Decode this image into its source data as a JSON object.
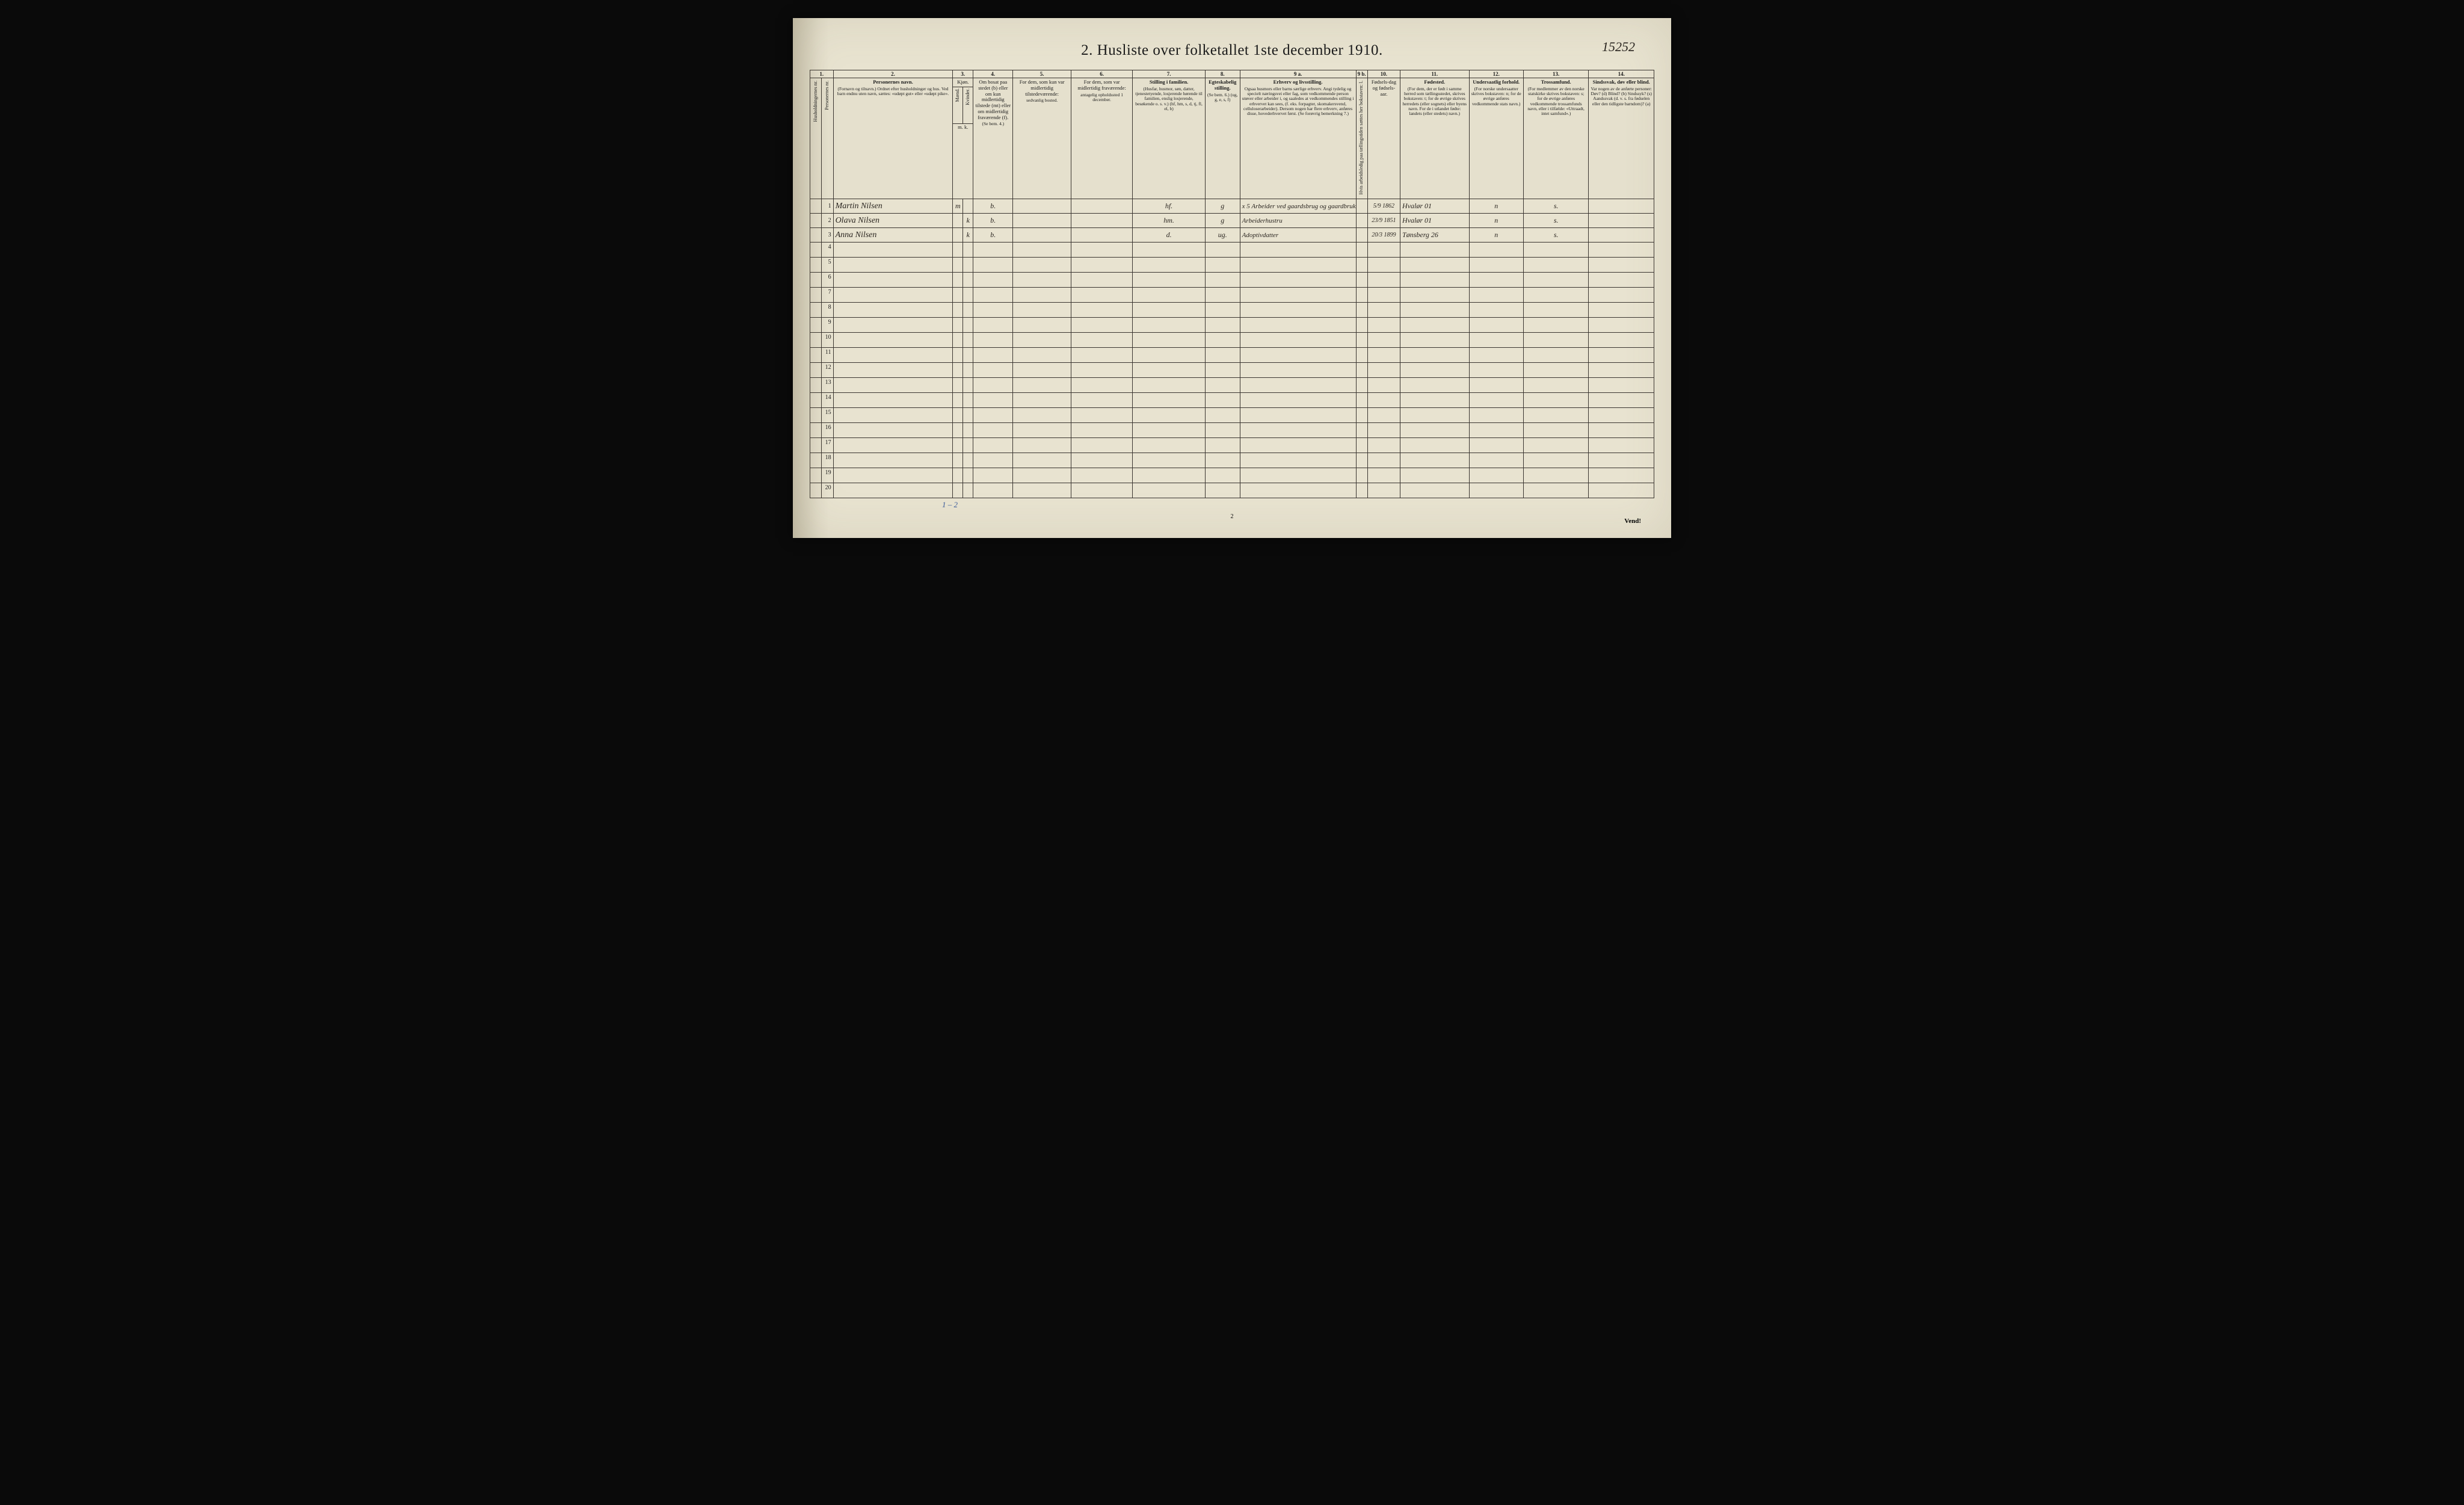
{
  "corner_annotation": "15252",
  "title": "2.  Husliste over folketallet 1ste december 1910.",
  "column_numbers": [
    "1.",
    "2.",
    "3.",
    "4.",
    "5.",
    "6.",
    "7.",
    "8.",
    "9 a.",
    "9 b.",
    "10.",
    "11.",
    "12.",
    "13.",
    "14."
  ],
  "headers": {
    "c1a": "Husholdningernes nr.",
    "c1b": "Personernes nr.",
    "c2_main": "Personernes navn.",
    "c2_sub": "(Fornavn og tilnavn.)\nOrdnet efter husholdninger og hus.\nVed barn endnu uten navn, sættes: «udøpt gut» eller «udøpt pike».",
    "c3_main": "Kjøn.",
    "c3_m": "Mænd.",
    "c3_k": "Kvinder.",
    "c3_foot": "m.  k.",
    "c4_main": "Om bosat paa stedet (b) eller om kun midlertidig tilstede (mt) eller om midlertidig fraværende (f).",
    "c4_foot": "(Se bem. 4.)",
    "c5_main": "For dem, som kun var midlertidig tilstedeværende:",
    "c5_sub": "sedvanlig bosted.",
    "c6_main": "For dem, som var midlertidig fraværende:",
    "c6_sub": "antagelig opholdssted 1 december.",
    "c7_main": "Stilling i familien.",
    "c7_sub": "(Husfar, husmor, søn, datter, tjenestetyende, losjerende hørende til familien, enslig losjerende, besøkende o. s. v.)\n(hf, hm, s, d, tj, fl, el, b)",
    "c8_main": "Egteskabelig stilling.",
    "c8_sub": "(Se bem. 6.)\n(ug, g, e, s, f)",
    "c9a_main": "Erhverv og livsstilling.",
    "c9a_sub": "Ogsaa husmors eller barns særlige erhverv.\nAngi tydelig og specielt næringsvei eller fag, som vedkommende person utøver eller arbeider i, og saaledes at vedkommendes stilling i erhvervet kan sees, (f. eks. forpagter, skomakersvend, celluloserarbeider). Dersom nogen har flere erhverv, anføres disse, hovederhvervet først.\n(Se forøvrig bemerkning 7.)",
    "c9b": "Hvis arbeidsledig paa tællingstiden sættes her bokstaven: l.",
    "c10_main": "Fødsels-dag og fødsels-aar.",
    "c11_main": "Fødested.",
    "c11_sub": "(For dem, der er født i samme herred som tællingsstedet, skrives bokstaven: t; for de øvrige skrives herredets (eller sognets) eller byens navn. For de i utlandet fødte: landets (eller stedets) navn.)",
    "c12_main": "Undersaatlig forhold.",
    "c12_sub": "(For norske undersaatter skrives bokstaven: n; for de øvrige anføres vedkommende stats navn.)",
    "c13_main": "Trossamfund.",
    "c13_sub": "(For medlemmer av den norske statskirke skrives bokstaven: s; for de øvrige anføres vedkommende trossamfunds navn, eller i tilfælde: «Uttraadt, intet samfund».)",
    "c14_main": "Sindssvak, døv eller blind.",
    "c14_sub": "Var nogen av de anførte personer:\nDøv? (d)\nBlind? (b)\nSindssyk? (s)\nAandssvak (d. v. s. fra fødselen eller den tidligste barndom)? (a)"
  },
  "rows": [
    {
      "num": "1",
      "name": "Martin Nilsen",
      "sex_m": "m",
      "sex_k": "",
      "bosat": "b.",
      "col5": "",
      "col6": "",
      "stilling": "hf.",
      "egte": "g",
      "erhverv": "x 5 Arbeider ved gaardsbrug og gaardbruker",
      "c9b": "",
      "fdato": "5/9 1862",
      "fsted": "Hvalør   01",
      "under": "n",
      "tros": "s.",
      "c14": ""
    },
    {
      "num": "2",
      "name": "Olava Nilsen",
      "sex_m": "",
      "sex_k": "k",
      "bosat": "b.",
      "col5": "",
      "col6": "",
      "stilling": "hm.",
      "egte": "g",
      "erhverv": "Arbeiderhustru",
      "c9b": "",
      "fdato": "23/9 1851",
      "fsted": "Hvalør   01",
      "under": "n",
      "tros": "s.",
      "c14": ""
    },
    {
      "num": "3",
      "name": "Anna Nilsen",
      "sex_m": "",
      "sex_k": "k",
      "bosat": "b.",
      "col5": "",
      "col6": "",
      "stilling": "d.",
      "egte": "ug.",
      "erhverv": "Adoptivdatter",
      "c9b": "",
      "fdato": "20/3 1899",
      "fsted": "Tønsberg  26",
      "under": "n",
      "tros": "s.",
      "c14": ""
    }
  ],
  "empty_row_start": 4,
  "empty_row_end": 20,
  "footer_note": "1 – 2",
  "page_number": "2",
  "vend": "Vend!",
  "colors": {
    "paper": "#e8e3d0",
    "ink": "#1a1a1a",
    "handwriting": "#2a2520",
    "blue_ink": "#3a5a9a",
    "border": "#3a3530"
  }
}
